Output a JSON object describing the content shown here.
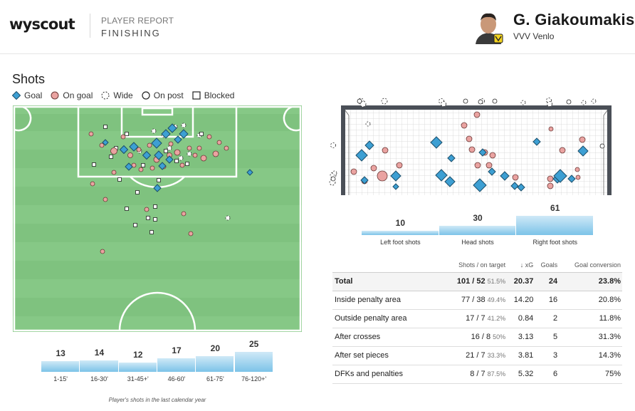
{
  "header": {
    "logo": "wyscout",
    "report_kicker": "PLAYER REPORT",
    "report_title": "FINISHING",
    "player_name": "G. Giakoumakis",
    "team": "VVV Venlo"
  },
  "shots": {
    "title": "Shots",
    "legend": [
      "Goal",
      "On goal",
      "Wide",
      "On post",
      "Blocked"
    ],
    "footnote": "Player's shots in the last calendar year"
  },
  "colors": {
    "goal": "#3d9fd3",
    "on_goal": "#eaa3a1",
    "pitch": "#7fc27f",
    "bar": "#7cc3e8"
  },
  "time_bars": {
    "labels": [
      "1-15'",
      "16-30'",
      "31-45+'",
      "46-60'",
      "61-75'",
      "76-120+'"
    ],
    "values": [
      13,
      14,
      12,
      17,
      20,
      25
    ]
  },
  "foot_bars": {
    "labels": [
      "Left foot shots",
      "Head shots",
      "Right foot shots"
    ],
    "values": [
      10,
      30,
      61
    ]
  },
  "table": {
    "headers": [
      "",
      "Shots / on target",
      "↓ xG",
      "Goals",
      "Goal conversion"
    ],
    "rows": [
      {
        "label": "Total",
        "shots": "101 / 52",
        "pct": "51.5%",
        "xg": "20.37",
        "goals": "24",
        "conv": "23.8%"
      },
      {
        "label": "Inside penalty area",
        "shots": "77 / 38",
        "pct": "49.4%",
        "xg": "14.20",
        "goals": "16",
        "conv": "20.8%"
      },
      {
        "label": "Outside penalty area",
        "shots": "17 / 7",
        "pct": "41.2%",
        "xg": "0.84",
        "goals": "2",
        "conv": "11.8%"
      },
      {
        "label": "After crosses",
        "shots": "16 / 8",
        "pct": "50%",
        "xg": "3.13",
        "goals": "5",
        "conv": "31.3%"
      },
      {
        "label": "After set pieces",
        "shots": "21 / 7",
        "pct": "33.3%",
        "xg": "3.81",
        "goals": "3",
        "conv": "14.3%"
      },
      {
        "label": "DFKs and penalties",
        "shots": "8 / 7",
        "pct": "87.5%",
        "xg": "5.32",
        "goals": "6",
        "conv": "75%"
      }
    ]
  }
}
